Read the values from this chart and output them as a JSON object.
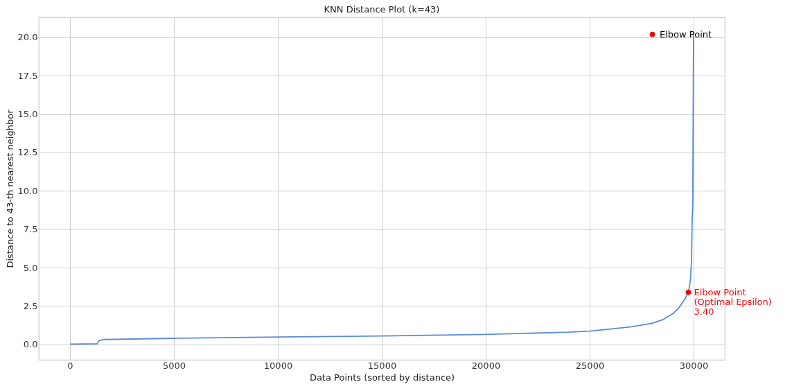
{
  "chart_data": {
    "type": "line",
    "title": "KNN Distance Plot (k=43)",
    "xlabel": "Data Points (sorted by distance)",
    "ylabel": "Distance to 43-th nearest neighbor",
    "xlim": [
      -1500,
      31500
    ],
    "ylim": [
      -1.0,
      21.3
    ],
    "xticks": [
      0,
      5000,
      10000,
      15000,
      20000,
      25000,
      30000
    ],
    "yticks": [
      {
        "value": 0,
        "label": "0.0"
      },
      {
        "value": 2.5,
        "label": "2.5"
      },
      {
        "value": 5,
        "label": "5.0"
      },
      {
        "value": 7.5,
        "label": "7.5"
      },
      {
        "value": 10,
        "label": "10.0"
      },
      {
        "value": 12.5,
        "label": "12.5"
      },
      {
        "value": 15,
        "label": "15.0"
      },
      {
        "value": 17.5,
        "label": "17.5"
      },
      {
        "value": 20,
        "label": "20.0"
      }
    ],
    "grid": true,
    "legend": "top right",
    "series": [
      {
        "color": "#5b8bd9",
        "x": [
          0,
          1300,
          1400,
          1600,
          5000,
          10000,
          15000,
          20000,
          24000,
          25000,
          26000,
          27000,
          28000,
          28500,
          29000,
          29300,
          29600,
          29750,
          29850,
          29900,
          29930,
          29960,
          29980,
          29990,
          30000
        ],
        "values": [
          0.02,
          0.04,
          0.25,
          0.32,
          0.4,
          0.48,
          0.55,
          0.65,
          0.8,
          0.87,
          1.0,
          1.15,
          1.38,
          1.6,
          2.0,
          2.4,
          3.0,
          3.4,
          4.2,
          5.5,
          8.0,
          9.2,
          15.0,
          18.0,
          20.3
        ]
      },
      {
        "type": "scatter",
        "name": "Elbow Point",
        "color": "#ff0000",
        "marker": "circle",
        "x": [
          29750
        ],
        "values": [
          3.4
        ]
      }
    ],
    "annotations": [
      {
        "text": "Elbow Point\n(Optimal Epsilon)\n3.40",
        "x": 29750,
        "y": 3.4
      }
    ]
  }
}
